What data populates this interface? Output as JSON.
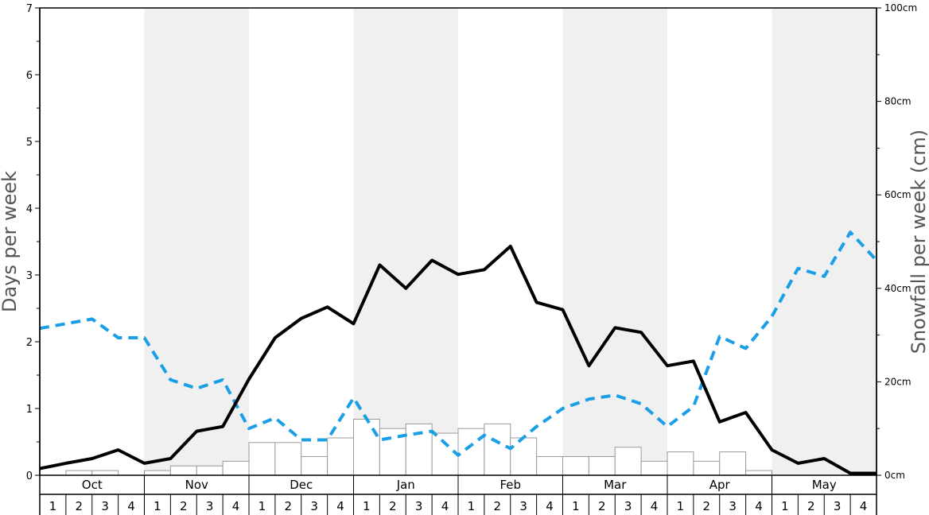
{
  "chart_data": {
    "type": "bar+line",
    "months": [
      "Oct",
      "Nov",
      "Dec",
      "Jan",
      "Feb",
      "Mar",
      "Apr",
      "May"
    ],
    "weeks": [
      "1",
      "2",
      "3",
      "4"
    ],
    "ylabel": "Days per week",
    "ylabel_right": "Snowfall per week (cm)",
    "ylim": [
      0,
      7
    ],
    "ylim_right": [
      0,
      100
    ],
    "y_ticks": [
      "0",
      "1",
      "2",
      "3",
      "4",
      "5",
      "6",
      "7"
    ],
    "y_right_ticks": [
      "0cm",
      "20cm",
      "40cm",
      "60cm",
      "80cm",
      "100cm"
    ],
    "grid": false,
    "snowfall_bars_cm": [
      0,
      1,
      1,
      0,
      1,
      2,
      2,
      3,
      7,
      7,
      4,
      8,
      12,
      10,
      11,
      9,
      10,
      11,
      8,
      4,
      4,
      4,
      6,
      3,
      5,
      3,
      5,
      1,
      0,
      0,
      0,
      0
    ],
    "series": [
      {
        "values": [
          0.1,
          0.18,
          0.25,
          0.38,
          0.18,
          0.25,
          0.66,
          0.73,
          1.44,
          2.06,
          2.35,
          2.52,
          2.27,
          3.15,
          2.8,
          3.22,
          3.01,
          3.08,
          3.43,
          2.59,
          2.48,
          1.64,
          2.21,
          2.14,
          1.64,
          1.71,
          0.8,
          0.94,
          0.38,
          0.18,
          0.25,
          0.03,
          0.03
        ]
      },
      {
        "values": [
          2.2,
          2.27,
          2.34,
          2.06,
          2.06,
          1.43,
          1.3,
          1.43,
          0.7,
          0.86,
          0.53,
          0.53,
          1.16,
          0.53,
          0.6,
          0.66,
          0.3,
          0.6,
          0.4,
          0.73,
          1.0,
          1.14,
          1.2,
          1.07,
          0.73,
          1.03,
          2.08,
          1.9,
          2.38,
          3.1,
          2.98,
          3.64,
          3.22
        ]
      }
    ],
    "colors": {
      "snow_days_line": "#000000",
      "other_line": "#1a9fe6",
      "bar_fill": "#ffffff",
      "bar_stroke": "#999999",
      "band_shade": "#f0f0f0"
    }
  }
}
